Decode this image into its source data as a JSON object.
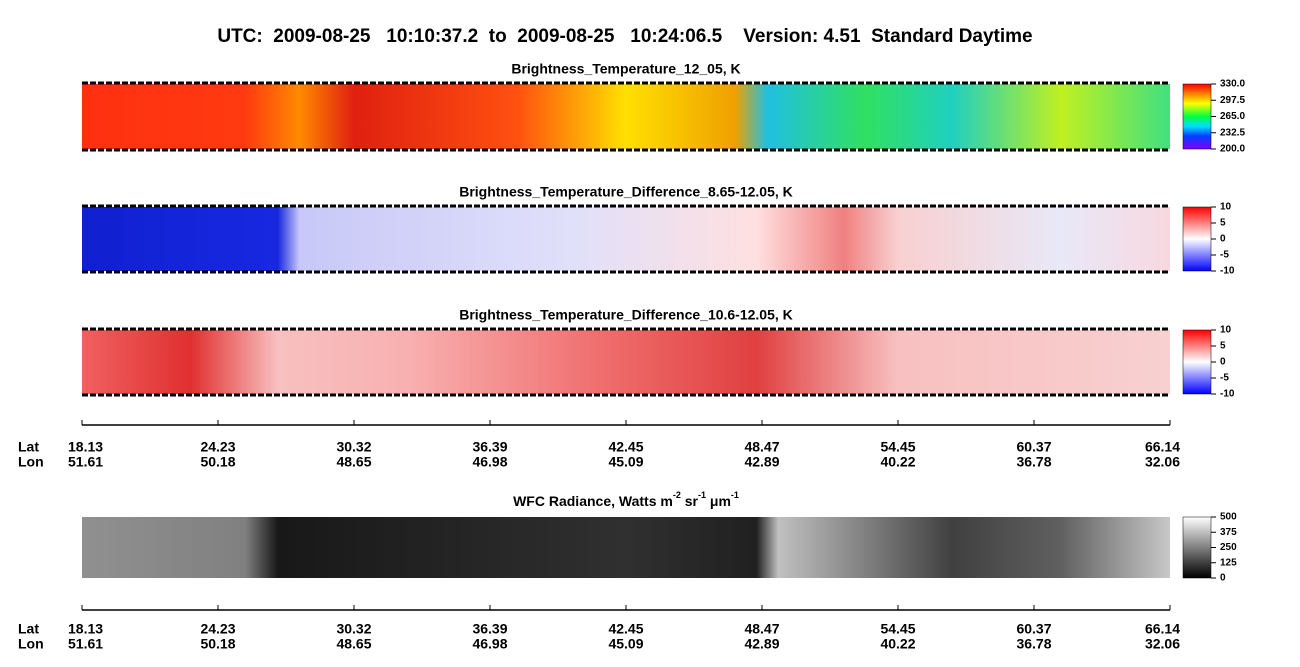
{
  "title": "UTC:  2009-08-25   10:10:37.2  to  2009-08-25   10:24:06.5    Version: 4.51  Standard Daytime",
  "panels": [
    {
      "title": "Brightness_Temperature_12_05, K",
      "colorbar": {
        "lim": [
          200,
          330
        ],
        "ticks": [
          {
            "value": 330,
            "label": "330.0"
          },
          297.5,
          {
            "value": 265,
            "label": "265.0"
          },
          232.5,
          {
            "value": 200,
            "label": "200.0"
          }
        ]
      }
    },
    {
      "title": "Brightness_Temperature_Difference_8.65-12.05, K",
      "colorbar": {
        "lim": [
          -10,
          10
        ],
        "ticks": [
          10,
          5,
          0,
          -5,
          -10
        ]
      }
    },
    {
      "title": "Brightness_Temperature_Difference_10.6-12.05, K",
      "colorbar": {
        "lim": [
          -10,
          10
        ],
        "ticks": [
          10,
          5,
          0,
          -5,
          -10
        ]
      }
    },
    {
      "title_parts": [
        "WFC Radiance, Watts m",
        "-2",
        " sr",
        "-1",
        " μm",
        "-1"
      ],
      "colorbar": {
        "lim": [
          0,
          500
        ],
        "ticks": [
          500,
          375,
          250,
          125,
          0
        ]
      }
    }
  ],
  "axes": [
    {
      "lat_label": "Lat",
      "lon_label": "Lon",
      "lat": [
        "18.13",
        "24.23",
        "30.32",
        "36.39",
        "42.45",
        "48.47",
        "54.45",
        "60.37",
        "66.14"
      ],
      "lon": [
        "51.61",
        "50.18",
        "48.65",
        "46.98",
        "45.09",
        "42.89",
        "40.22",
        "36.78",
        "32.06"
      ]
    },
    {
      "lat_label": "Lat",
      "lon_label": "Lon",
      "lat": [
        "18.13",
        "24.23",
        "30.32",
        "36.39",
        "42.45",
        "48.47",
        "54.45",
        "60.37",
        "66.14"
      ],
      "lon": [
        "51.61",
        "50.18",
        "48.65",
        "46.98",
        "45.09",
        "42.89",
        "40.22",
        "36.78",
        "32.06"
      ]
    }
  ]
}
